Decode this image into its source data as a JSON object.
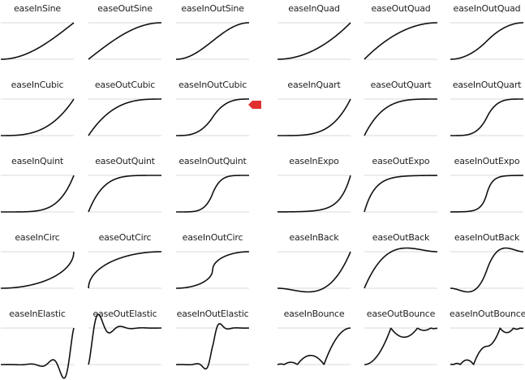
{
  "colors": {
    "curve": "#111111",
    "guide": "#d9d9d9",
    "label": "#222222",
    "marker": "#e03030"
  },
  "selected": "easeInOutCubic",
  "marker_icon": "red-pointer-icon",
  "easings": [
    {
      "id": "easeInSine",
      "label": "easeInSine"
    },
    {
      "id": "easeOutSine",
      "label": "easeOutSine"
    },
    {
      "id": "easeInOutSine",
      "label": "easeInOutSine"
    },
    {
      "id": "easeInQuad",
      "label": "easeInQuad"
    },
    {
      "id": "easeOutQuad",
      "label": "easeOutQuad"
    },
    {
      "id": "easeInOutQuad",
      "label": "easeInOutQuad"
    },
    {
      "id": "easeInCubic",
      "label": "easeInCubic"
    },
    {
      "id": "easeOutCubic",
      "label": "easeOutCubic"
    },
    {
      "id": "easeInOutCubic",
      "label": "easeInOutCubic"
    },
    {
      "id": "easeInQuart",
      "label": "easeInQuart"
    },
    {
      "id": "easeOutQuart",
      "label": "easeOutQuart"
    },
    {
      "id": "easeInOutQuart",
      "label": "easeInOutQuart"
    },
    {
      "id": "easeInQuint",
      "label": "easeInQuint"
    },
    {
      "id": "easeOutQuint",
      "label": "easeOutQuint"
    },
    {
      "id": "easeInOutQuint",
      "label": "easeInOutQuint"
    },
    {
      "id": "easeInExpo",
      "label": "easeInExpo"
    },
    {
      "id": "easeOutExpo",
      "label": "easeOutExpo"
    },
    {
      "id": "easeInOutExpo",
      "label": "easeInOutExpo"
    },
    {
      "id": "easeInCirc",
      "label": "easeInCirc"
    },
    {
      "id": "easeOutCirc",
      "label": "easeOutCirc"
    },
    {
      "id": "easeInOutCirc",
      "label": "easeInOutCirc"
    },
    {
      "id": "easeInBack",
      "label": "easeInBack"
    },
    {
      "id": "easeOutBack",
      "label": "easeOutBack"
    },
    {
      "id": "easeInOutBack",
      "label": "easeInOutBack"
    },
    {
      "id": "easeInElastic",
      "label": "easeInElastic"
    },
    {
      "id": "easeOutElastic",
      "label": "easeOutElastic"
    },
    {
      "id": "easeInOutElastic",
      "label": "easeInOutElastic"
    },
    {
      "id": "easeInBounce",
      "label": "easeInBounce"
    },
    {
      "id": "easeOutBounce",
      "label": "easeOutBounce"
    },
    {
      "id": "easeInOutBounce",
      "label": "easeInOutBounce"
    }
  ]
}
